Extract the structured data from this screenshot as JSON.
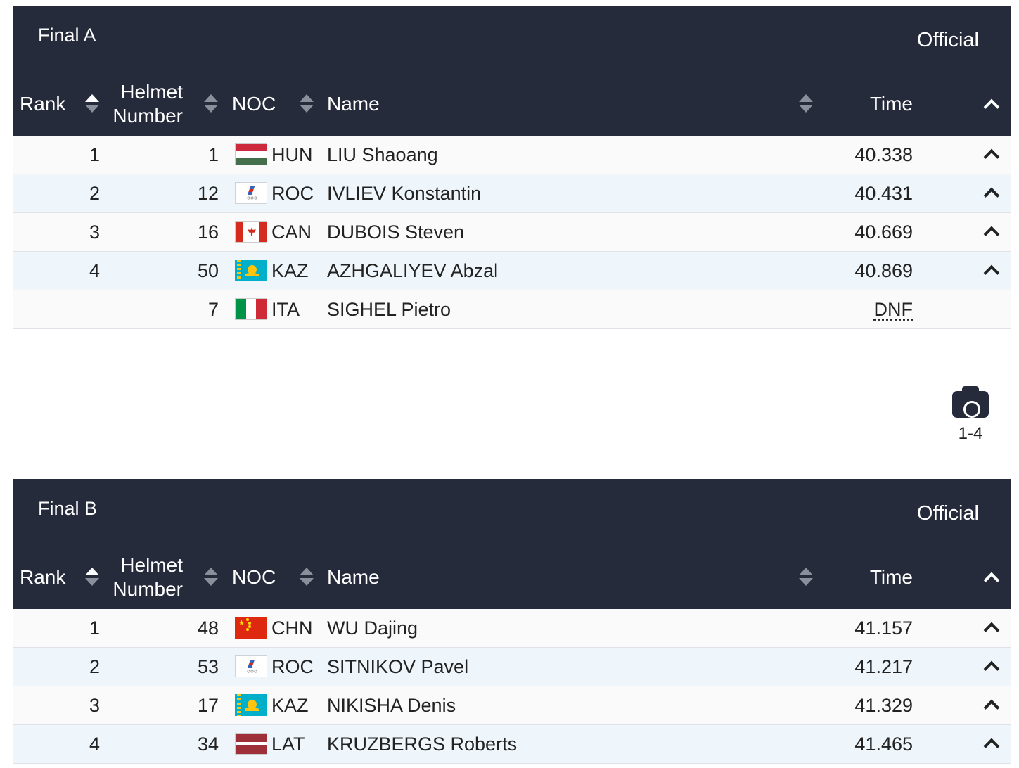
{
  "columns": {
    "rank": "Rank",
    "helmet_line1": "Helmet",
    "helmet_line2": "Number",
    "noc": "NOC",
    "name": "Name",
    "time": "Time"
  },
  "screenshot_label": "1-4",
  "colors": {
    "header_bg": "#262b3b",
    "row_alt_bg": "#eef6fb",
    "row_bg": "#fafafa"
  },
  "finals": [
    {
      "title": "Final A",
      "status": "Official",
      "rows": [
        {
          "rank": "1",
          "helmet": "1",
          "noc": "HUN",
          "flag": "hun",
          "name": "LIU Shaoang",
          "time": "40.338",
          "chevron": true
        },
        {
          "rank": "2",
          "helmet": "12",
          "noc": "ROC",
          "flag": "roc",
          "name": "IVLIEV Konstantin",
          "time": "40.431",
          "chevron": true
        },
        {
          "rank": "3",
          "helmet": "16",
          "noc": "CAN",
          "flag": "can",
          "name": "DUBOIS Steven",
          "time": "40.669",
          "chevron": true
        },
        {
          "rank": "4",
          "helmet": "50",
          "noc": "KAZ",
          "flag": "kaz",
          "name": "AZHGALIYEV Abzal",
          "time": "40.869",
          "chevron": true
        },
        {
          "rank": "",
          "helmet": "7",
          "noc": "ITA",
          "flag": "ita",
          "name": "SIGHEL Pietro",
          "time": "DNF",
          "chevron": false
        }
      ]
    },
    {
      "title": "Final B",
      "status": "Official",
      "rows": [
        {
          "rank": "1",
          "helmet": "48",
          "noc": "CHN",
          "flag": "chn",
          "name": "WU Dajing",
          "time": "41.157",
          "chevron": true
        },
        {
          "rank": "2",
          "helmet": "53",
          "noc": "ROC",
          "flag": "roc",
          "name": "SITNIKOV Pavel",
          "time": "41.217",
          "chevron": true
        },
        {
          "rank": "3",
          "helmet": "17",
          "noc": "KAZ",
          "flag": "kaz",
          "name": "NIKISHA Denis",
          "time": "41.329",
          "chevron": true
        },
        {
          "rank": "4",
          "helmet": "34",
          "noc": "LAT",
          "flag": "lat",
          "name": "KRUZBERGS Roberts",
          "time": "41.465",
          "chevron": true
        }
      ]
    }
  ]
}
